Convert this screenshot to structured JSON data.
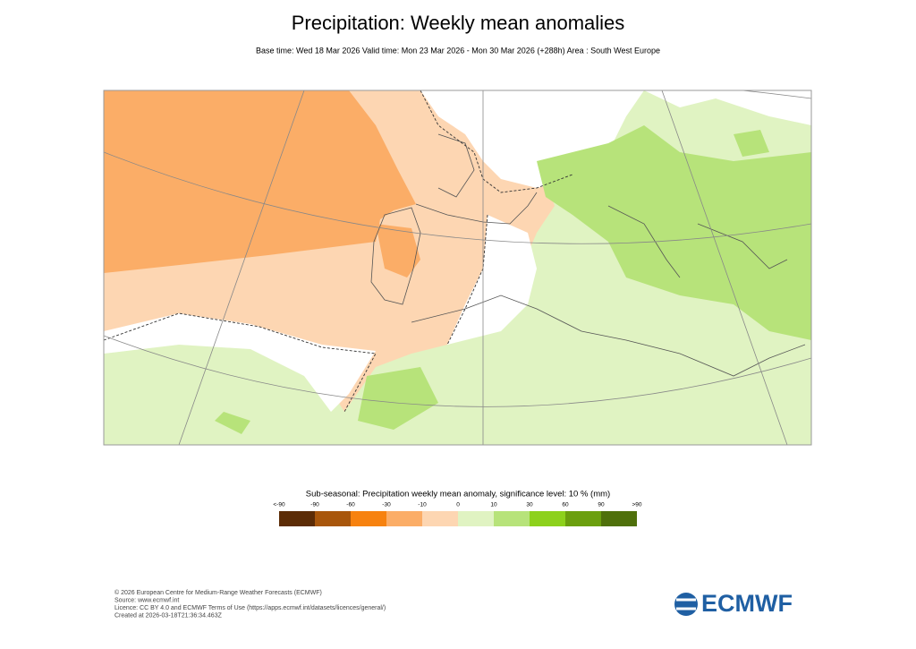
{
  "header": {
    "title": "Precipitation: Weekly mean anomalies",
    "subtitle": "Base time: Wed 18 Mar 2026 Valid time: Mon 23 Mar 2026 - Mon 30 Mar 2026 (+288h) Area : South West Europe"
  },
  "legend": {
    "title": "Sub-seasonal: Precipitation weekly mean anomaly, significance level: 10 % (mm)",
    "labels": [
      "<-90",
      "-90",
      "-60",
      "-30",
      "-10",
      "0",
      "10",
      "30",
      "60",
      "90",
      ">90"
    ],
    "colors": [
      "#5c2c06",
      "#a8560b",
      "#f7820f",
      "#fbad67",
      "#fdd6b2",
      "#e0f3c2",
      "#b7e37a",
      "#8dd11c",
      "#6b9f0e",
      "#4f700b"
    ]
  },
  "footer": {
    "lines": [
      "© 2026 European Centre for Medium-Range Weather Forecasts (ECMWF)",
      "Source: www.ecmwf.int",
      "Licence: CC BY 4.0 and ECMWF Terms of Use (https://apps.ecmwf.int/datasets/licences/general/)",
      "Created at 2026-03-18T21:36:34.463Z"
    ],
    "logo": "ECMWF"
  }
}
